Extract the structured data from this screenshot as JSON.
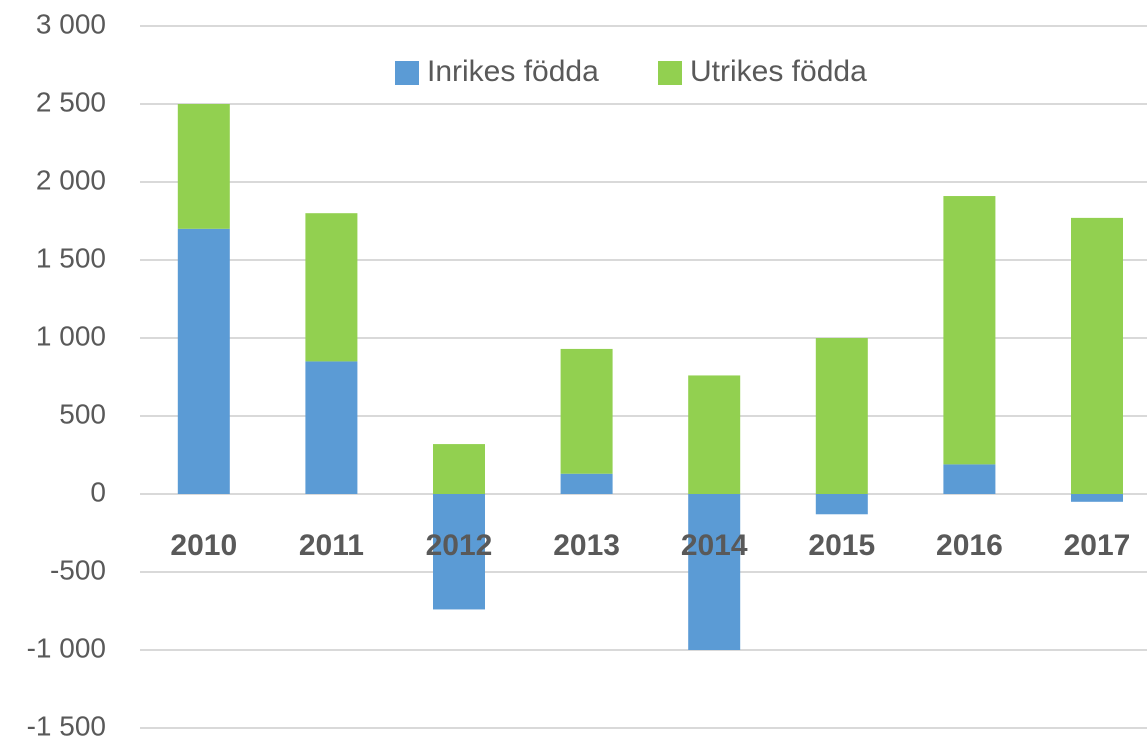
{
  "chart_data": {
    "type": "stacked_bar",
    "categories": [
      "2010",
      "2011",
      "2012",
      "2013",
      "2014",
      "2015",
      "2016",
      "2017"
    ],
    "series": [
      {
        "name": "Inrikes födda",
        "color": "#5b9bd5",
        "values": [
          1700,
          850,
          -740,
          130,
          -1000,
          -130,
          190,
          -50
        ]
      },
      {
        "name": "Utrikes födda",
        "color": "#92d050",
        "values": [
          800,
          950,
          320,
          800,
          760,
          1000,
          1720,
          1770
        ]
      }
    ],
    "ylim": [
      -1500,
      3000
    ],
    "yticks": [
      {
        "value": -1500,
        "label": "-1 500"
      },
      {
        "value": -1000,
        "label": "-1 000"
      },
      -500,
      0,
      500,
      {
        "value": 1000,
        "label": "1 000"
      },
      {
        "value": 1500,
        "label": "1 500"
      },
      {
        "value": 2000,
        "label": "2 000"
      },
      {
        "value": 2500,
        "label": "2 500"
      },
      {
        "value": 3000,
        "label": "3 000"
      }
    ],
    "grid": true,
    "legend": "top"
  }
}
